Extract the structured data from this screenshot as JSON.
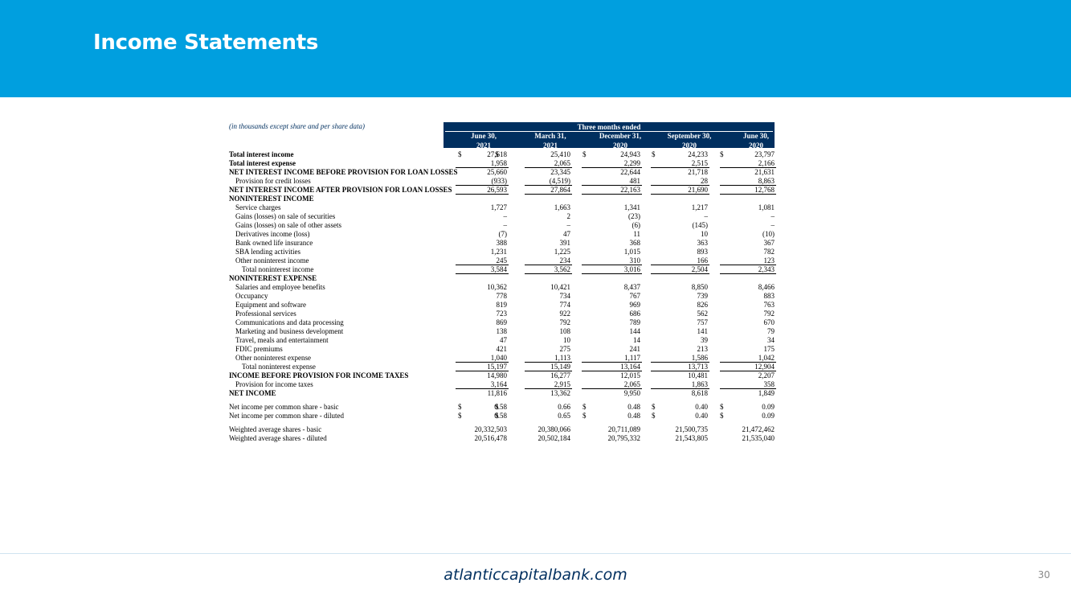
{
  "slide": {
    "title": "Income Statements",
    "footer": "atlanticcapitalbank.com",
    "page_number": "30"
  },
  "table": {
    "note": "(in thousands except share and per share data)",
    "period_heading": "Three months ended",
    "columns": [
      {
        "line1": "June 30,",
        "line2": "2021"
      },
      {
        "line1": "March 31,",
        "line2": "2021"
      },
      {
        "line1": "December 31,",
        "line2": "2020"
      },
      {
        "line1": "September 30,",
        "line2": "2020"
      },
      {
        "line1": "June 30,",
        "line2": "2020"
      }
    ],
    "rows": [
      {
        "label": "Total interest income",
        "bold": true,
        "indent": 0,
        "dollar": true,
        "values": [
          "27,618",
          "25,410",
          "24,943",
          "24,233",
          "23,797"
        ]
      },
      {
        "label": "Total interest expense",
        "bold": true,
        "indent": 0,
        "values": [
          "1,958",
          "2,065",
          "2,299",
          "2,515",
          "2,166"
        ],
        "underline": true
      },
      {
        "label": "NET INTEREST INCOME BEFORE PROVISION FOR LOAN LOSSES",
        "bold": true,
        "indent": 0,
        "values": [
          "25,660",
          "23,345",
          "22,644",
          "21,718",
          "21,631"
        ]
      },
      {
        "label": "Provision for credit losses",
        "indent": 1,
        "values": [
          "(933)",
          "(4,519)",
          "481",
          "28",
          "8,863"
        ],
        "underline": true
      },
      {
        "label": "NET INTEREST INCOME AFTER PROVISION FOR LOAN LOSSES",
        "bold": true,
        "indent": 0,
        "values": [
          "26,593",
          "27,864",
          "22,163",
          "21,690",
          "12,768"
        ],
        "underline": true
      },
      {
        "label": "NONINTEREST INCOME",
        "bold": true,
        "indent": 0,
        "values": [
          "",
          "",
          "",
          "",
          ""
        ]
      },
      {
        "label": "Service charges",
        "indent": 1,
        "values": [
          "1,727",
          "1,663",
          "1,341",
          "1,217",
          "1,081"
        ]
      },
      {
        "label": "Gains (losses) on sale of securities",
        "indent": 1,
        "values": [
          "–",
          "2",
          "(23)",
          "–",
          "–"
        ]
      },
      {
        "label": "Gains (losses) on sale of other assets",
        "indent": 1,
        "values": [
          "–",
          "–",
          "(6)",
          "(145)",
          "–"
        ]
      },
      {
        "label": "Derivatives income (loss)",
        "indent": 1,
        "values": [
          "(7)",
          "47",
          "11",
          "10",
          "(10)"
        ]
      },
      {
        "label": "Bank owned life insurance",
        "indent": 1,
        "values": [
          "388",
          "391",
          "368",
          "363",
          "367"
        ]
      },
      {
        "label": "SBA lending activities",
        "indent": 1,
        "values": [
          "1,231",
          "1,225",
          "1,015",
          "893",
          "782"
        ]
      },
      {
        "label": "Other noninterest income",
        "indent": 1,
        "values": [
          "245",
          "234",
          "310",
          "166",
          "123"
        ],
        "underline": true
      },
      {
        "label": "Total noninterest income",
        "indent": 2,
        "values": [
          "3,584",
          "3,562",
          "3,016",
          "2,504",
          "2,343"
        ],
        "underline": true
      },
      {
        "label": "NONINTEREST EXPENSE",
        "bold": true,
        "indent": 0,
        "values": [
          "",
          "",
          "",
          "",
          ""
        ]
      },
      {
        "label": "Salaries and employee benefits",
        "indent": 1,
        "values": [
          "10,362",
          "10,421",
          "8,437",
          "8,850",
          "8,466"
        ]
      },
      {
        "label": "Occupancy",
        "indent": 1,
        "values": [
          "778",
          "734",
          "767",
          "739",
          "883"
        ]
      },
      {
        "label": "Equipment and software",
        "indent": 1,
        "values": [
          "819",
          "774",
          "969",
          "826",
          "763"
        ]
      },
      {
        "label": "Professional services",
        "indent": 1,
        "values": [
          "723",
          "922",
          "686",
          "562",
          "792"
        ]
      },
      {
        "label": "Communications and data processing",
        "indent": 1,
        "values": [
          "869",
          "792",
          "789",
          "757",
          "670"
        ]
      },
      {
        "label": "Marketing and business development",
        "indent": 1,
        "values": [
          "138",
          "108",
          "144",
          "141",
          "79"
        ]
      },
      {
        "label": "Travel, meals and entertainment",
        "indent": 1,
        "values": [
          "47",
          "10",
          "14",
          "39",
          "34"
        ]
      },
      {
        "label": "FDIC premiums",
        "indent": 1,
        "values": [
          "421",
          "275",
          "241",
          "213",
          "175"
        ]
      },
      {
        "label": "Other noninterest expense",
        "indent": 1,
        "values": [
          "1,040",
          "1,113",
          "1,117",
          "1,586",
          "1,042"
        ],
        "underline": true
      },
      {
        "label": "Total noninterest expense",
        "indent": 2,
        "values": [
          "15,197",
          "15,149",
          "13,164",
          "13,713",
          "12,904"
        ],
        "underline": true
      },
      {
        "label": "INCOME BEFORE PROVISION FOR INCOME TAXES",
        "bold": true,
        "indent": 0,
        "values": [
          "14,980",
          "16,277",
          "12,015",
          "10,481",
          "2,207"
        ]
      },
      {
        "label": "Provision for income taxes",
        "indent": 1,
        "values": [
          "3,164",
          "2,915",
          "2,065",
          "1,863",
          "358"
        ],
        "underline": true
      },
      {
        "label": "NET INCOME",
        "bold": true,
        "indent": 0,
        "values": [
          "11,816",
          "13,362",
          "9,950",
          "8,618",
          "1,849"
        ]
      },
      {
        "spacer": true
      },
      {
        "label": "Net income per common share - basic",
        "indent": 0,
        "dollar": true,
        "values": [
          "0.58",
          "0.66",
          "0.48",
          "0.40",
          "0.09"
        ]
      },
      {
        "label": "Net income per common share - diluted",
        "indent": 0,
        "dollar": true,
        "values": [
          "0.58",
          "0.65",
          "0.48",
          "0.40",
          "0.09"
        ]
      },
      {
        "spacer": true
      },
      {
        "label": "Weighted average shares - basic",
        "indent": 0,
        "values": [
          "20,332,503",
          "20,380,066",
          "20,711,089",
          "21,500,735",
          "21,472,462"
        ]
      },
      {
        "label": "Weighted average shares - diluted",
        "indent": 0,
        "values": [
          "20,516,478",
          "20,502,184",
          "20,795,332",
          "21,543,805",
          "21,535,040"
        ]
      }
    ]
  }
}
